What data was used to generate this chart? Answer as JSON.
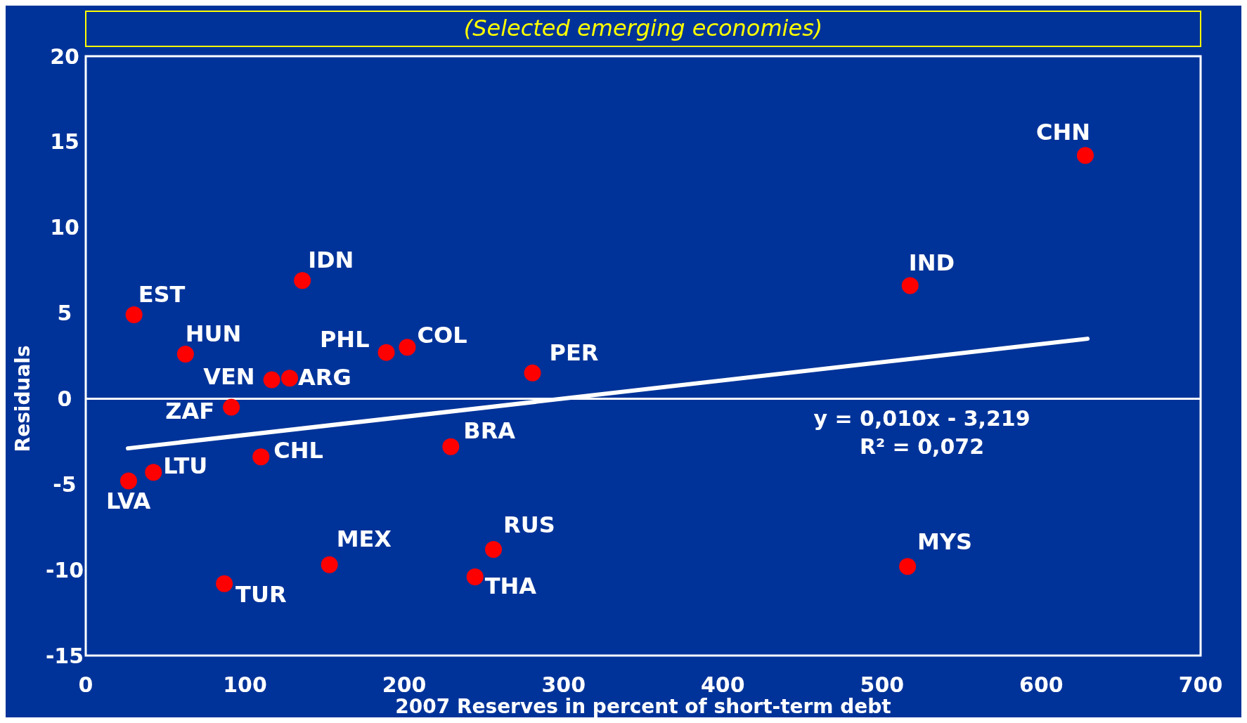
{
  "chart_data": {
    "type": "scatter",
    "title": "(Selected emerging economies)",
    "xlabel": "2007 Reserves in percent of short-term debt",
    "ylabel": "Residuals",
    "xlim": [
      0,
      700
    ],
    "xticks": [
      0,
      100,
      200,
      300,
      400,
      500,
      600,
      700
    ],
    "ylim": [
      -15,
      20
    ],
    "yticks": [
      -15,
      -10,
      -5,
      0,
      5,
      10,
      15,
      20
    ],
    "grid": false,
    "marker": "circle",
    "series": [
      {
        "color": "#ff0000",
        "x": [
          30.3,
          62.6,
          136,
          188.7,
          201.9,
          116.8,
          128,
          91.4,
          280.5,
          229.2,
          110,
          42.5,
          26.9,
          153,
          87,
          244.4,
          256,
          516,
          517.6,
          627.6
        ],
        "values": [
          4.9,
          2.6,
          6.9,
          2.7,
          3.0,
          1.1,
          1.2,
          -0.5,
          1.5,
          -2.8,
          -3.4,
          -4.3,
          -4.8,
          -9.7,
          -10.8,
          -10.4,
          -8.8,
          -9.8,
          6.6,
          14.2
        ]
      },
      {
        "type": "line",
        "color": "#ffffff",
        "marker": "none",
        "x": [
          26.5,
          629
        ],
        "values": [
          -2.9,
          3.5
        ]
      }
    ],
    "ref_lines": [
      {
        "axis": "y",
        "value": 0,
        "color": "#ffffff"
      }
    ],
    "annotations": [
      {
        "text": "EST",
        "x": 30.3,
        "y": 4.9
      },
      {
        "text": "HUN",
        "x": 62.6,
        "y": 2.6
      },
      {
        "text": "IDN",
        "x": 136,
        "y": 6.9
      },
      {
        "text": "PHL",
        "x": 188.7,
        "y": 2.7
      },
      {
        "text": "COL",
        "x": 201.9,
        "y": 3.0
      },
      {
        "text": "VEN",
        "x": 116.8,
        "y": 1.1
      },
      {
        "text": "ARG",
        "x": 128,
        "y": 1.2
      },
      {
        "text": "ZAF",
        "x": 91.4,
        "y": -0.5
      },
      {
        "text": "PER",
        "x": 280.5,
        "y": 1.5
      },
      {
        "text": "BRA",
        "x": 229.2,
        "y": -2.8
      },
      {
        "text": "CHL",
        "x": 110,
        "y": -3.4
      },
      {
        "text": "LTU",
        "x": 42.5,
        "y": -4.3
      },
      {
        "text": "LVA",
        "x": 26.9,
        "y": -4.8
      },
      {
        "text": "MEX",
        "x": 153,
        "y": -9.7
      },
      {
        "text": "TUR",
        "x": 87,
        "y": -10.8
      },
      {
        "text": "THA",
        "x": 244.4,
        "y": -10.4
      },
      {
        "text": "RUS",
        "x": 256,
        "y": -8.8
      },
      {
        "text": "MYS",
        "x": 516,
        "y": -9.8
      },
      {
        "text": "IND",
        "x": 517.6,
        "y": 6.6
      },
      {
        "text": "CHN",
        "x": 627.6,
        "y": 14.2
      },
      "y = 0,010x - 3,219",
      "R² = 0,072"
    ]
  }
}
